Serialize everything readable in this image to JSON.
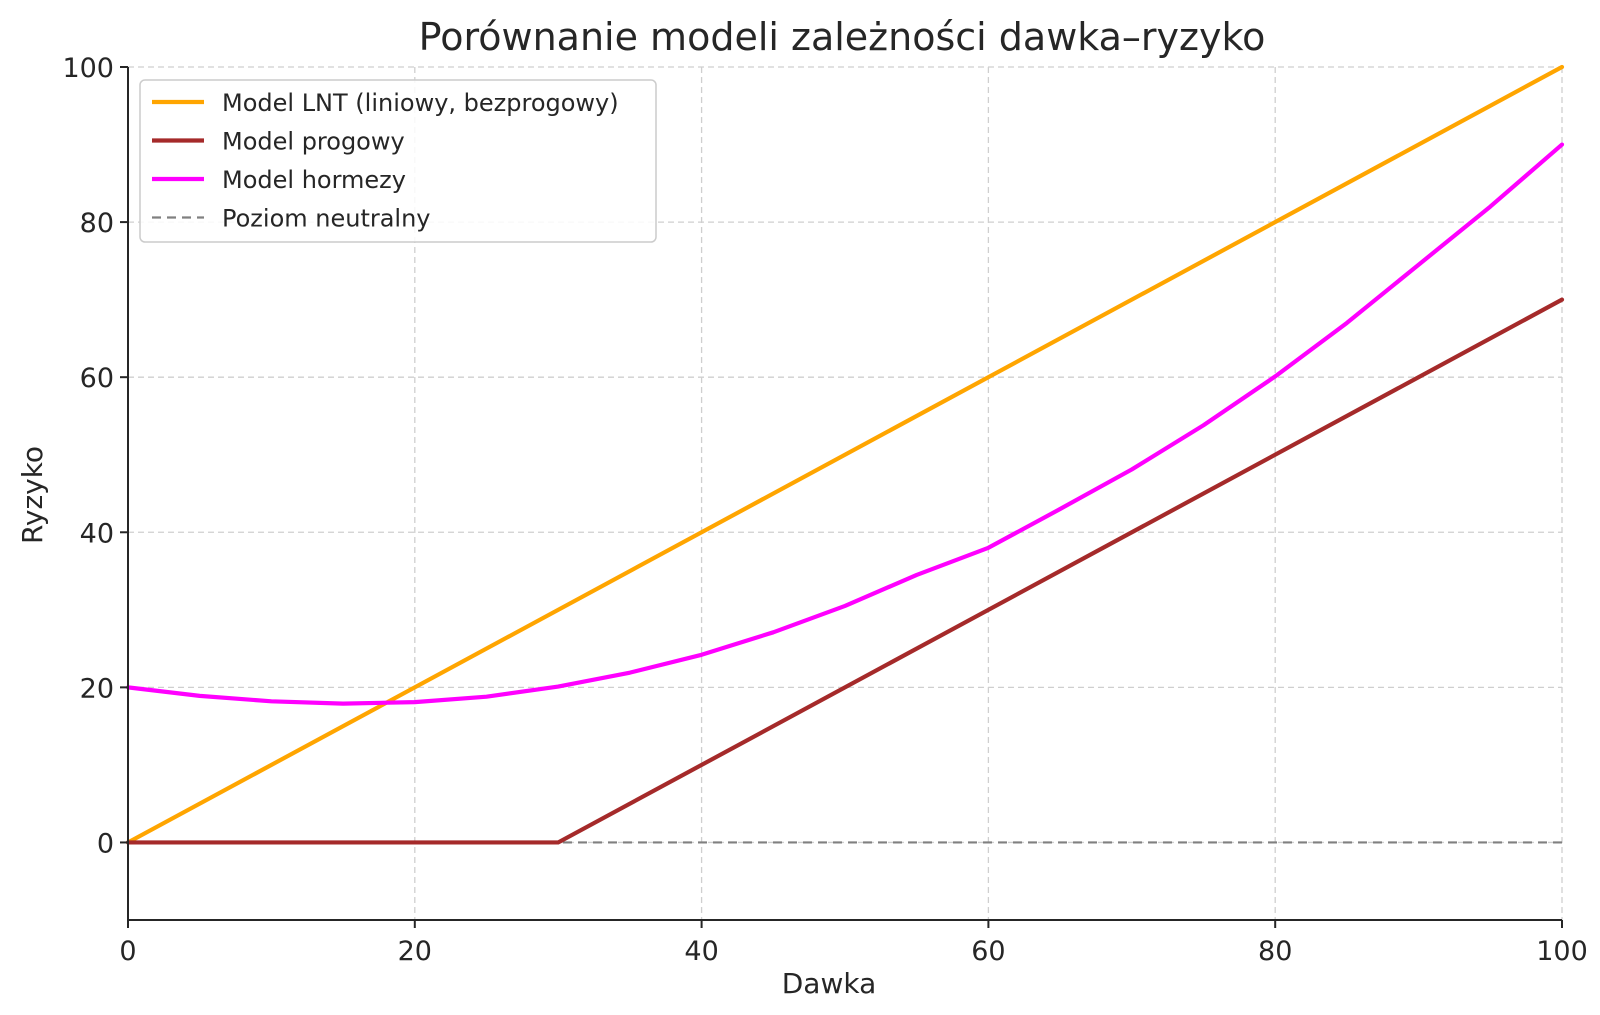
{
  "chart_data": {
    "type": "line",
    "title": "Porównanie modeli zależności dawka–ryzyko",
    "xlabel": "Dawka",
    "ylabel": "Ryzyko",
    "xlim": [
      0,
      100
    ],
    "ylim": [
      -10,
      100
    ],
    "xticks": [
      0,
      20,
      40,
      60,
      80,
      100
    ],
    "yticks": [
      0,
      20,
      40,
      60,
      80,
      100
    ],
    "grid": true,
    "legend": "top-left",
    "series": [
      {
        "name": "Model LNT (liniowy, bezprogowy)",
        "color": "#FFA500",
        "style": "solid",
        "x": [
          0,
          100
        ],
        "y": [
          0,
          100
        ]
      },
      {
        "name": "Model progowy",
        "color": "#A52A2A",
        "style": "solid",
        "x": [
          0,
          30,
          100
        ],
        "y": [
          0,
          0,
          70
        ]
      },
      {
        "name": "Model hormezy",
        "color": "#FF00FF",
        "style": "solid",
        "x": [
          0,
          5,
          10,
          15,
          20,
          25,
          30,
          35,
          40,
          45,
          50,
          55,
          60,
          65,
          70,
          75,
          80,
          85,
          90,
          95,
          100
        ],
        "y": [
          20,
          18.9,
          18.2,
          17.9,
          18.1,
          18.8,
          20.1,
          21.9,
          24.2,
          27.1,
          30.5,
          34.5,
          38.0,
          43.0,
          48.1,
          53.8,
          60.1,
          67.0,
          74.5,
          82.0,
          90.0
        ]
      },
      {
        "name": "Poziom neutralny",
        "color": "#808080",
        "style": "dashed",
        "x": [
          0,
          100
        ],
        "y": [
          0,
          0
        ]
      }
    ]
  }
}
